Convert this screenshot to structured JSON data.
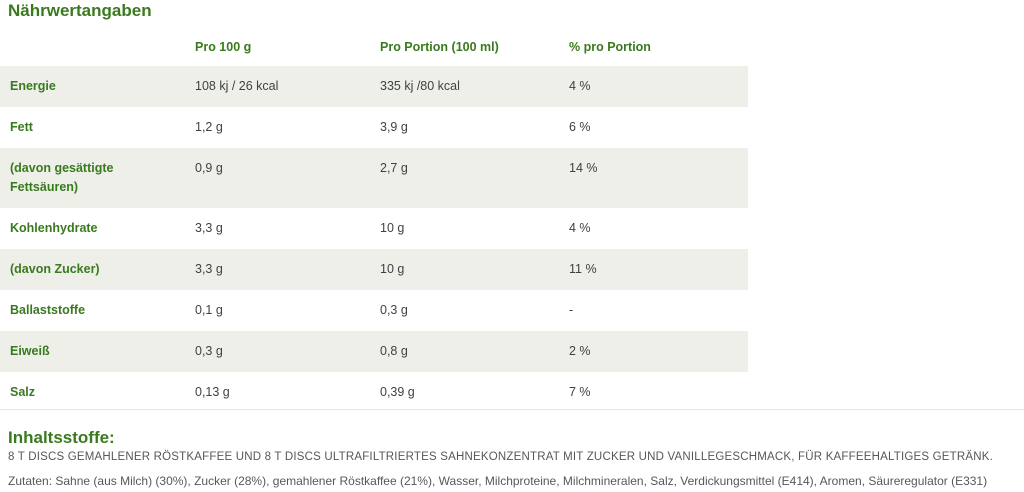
{
  "colors": {
    "accent_green": "#3a7a1e",
    "row_shade": "#edefe8",
    "value_text": "#3d4245",
    "body_gray": "#54585c",
    "separator": "#e6e6e6"
  },
  "title": "Nährwertangaben",
  "table": {
    "headers": [
      "",
      "Pro 100 g",
      "Pro Portion (100 ml)",
      "% pro Portion"
    ],
    "rows": [
      {
        "label": "Energie",
        "per_100g": "108 kj / 26 kcal",
        "per_portion": "335 kj /80 kcal",
        "percent_portion": "4 %",
        "shaded": true
      },
      {
        "label": "Fett",
        "per_100g": "1,2 g",
        "per_portion": "3,9 g",
        "percent_portion": "6 %",
        "shaded": false
      },
      {
        "label": "(davon gesättigte Fettsäuren)",
        "per_100g": "0,9 g",
        "per_portion": "2,7 g",
        "percent_portion": "14 %",
        "shaded": true
      },
      {
        "label": "Kohlenhydrate",
        "per_100g": "3,3 g",
        "per_portion": "10 g",
        "percent_portion": "4 %",
        "shaded": false
      },
      {
        "label": "(davon Zucker)",
        "per_100g": "3,3 g",
        "per_portion": "10 g",
        "percent_portion": "11 %",
        "shaded": true
      },
      {
        "label": "Ballaststoffe",
        "per_100g": "0,1 g",
        "per_portion": "0,3 g",
        "percent_portion": "-",
        "shaded": false
      },
      {
        "label": "Eiweiß",
        "per_100g": "0,3 g",
        "per_portion": "0,8 g",
        "percent_portion": "2 %",
        "shaded": true
      },
      {
        "label": "Salz",
        "per_100g": "0,13 g",
        "per_portion": "0,39 g",
        "percent_portion": "7 %",
        "shaded": false
      }
    ]
  },
  "ingredients": {
    "heading": "Inhaltsstoffe:",
    "description": "8 T DISCS GEMAHLENER RÖSTKAFFEE UND 8 T DISCS ULTRAFILTRIERTES SAHNEKONZENTRAT MIT ZUCKER UND VANILLEGESCHMACK, FÜR KAFFEEHALTIGES GETRÄNK.",
    "zutaten": "Zutaten: Sahne (aus Milch) (30%), Zucker (28%), gemahlener Röstkaffee (21%), Wasser, Milchproteine, Milchmineralen, Salz, Verdickungsmittel (E414), Aromen, Säureregulator (E331)"
  }
}
